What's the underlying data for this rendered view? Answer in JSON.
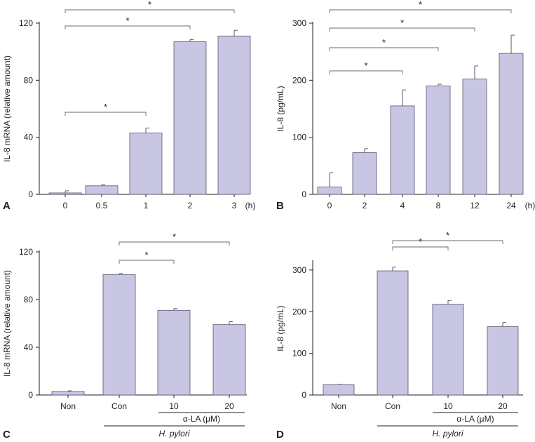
{
  "chart_data": [
    {
      "panel": "A",
      "type": "bar",
      "ylabel": "IL-8 mRNA (relative amount)",
      "unit_label": "(h)",
      "categories": [
        "0",
        "0.5",
        "1",
        "2",
        "3"
      ],
      "values": [
        1,
        6,
        43,
        107,
        111
      ],
      "errors": [
        1.5,
        0.8,
        3.5,
        1.5,
        4
      ],
      "yticks": [
        "0",
        "40",
        "80",
        "120"
      ],
      "ylim": [
        0,
        120
      ],
      "significance": [
        {
          "from": 0,
          "to": 2,
          "label": "*"
        },
        {
          "from": 0,
          "to": 3,
          "label": "*"
        },
        {
          "from": 0,
          "to": 4,
          "label": "*"
        }
      ],
      "group_label": null
    },
    {
      "panel": "B",
      "type": "bar",
      "ylabel": "IL-8 (pg/mL)",
      "unit_label": "(h)",
      "categories": [
        "0",
        "2",
        "4",
        "8",
        "12",
        "24"
      ],
      "values": [
        13,
        73,
        155,
        190,
        202,
        247
      ],
      "errors": [
        25,
        7,
        28,
        3,
        23,
        32
      ],
      "yticks": [
        "0",
        "100",
        "200",
        "300"
      ],
      "ylim": [
        0,
        300
      ],
      "significance": [
        {
          "from": 0,
          "to": 2,
          "label": "*"
        },
        {
          "from": 0,
          "to": 3,
          "label": "*"
        },
        {
          "from": 0,
          "to": 4,
          "label": "*"
        },
        {
          "from": 0,
          "to": 5,
          "label": "*"
        }
      ],
      "group_label": null
    },
    {
      "panel": "C",
      "type": "bar",
      "ylabel": "IL-8 mRNA (relative amount)",
      "unit_label": "",
      "categories": [
        "Non",
        "Con",
        "10",
        "20"
      ],
      "values": [
        3,
        101,
        71,
        59
      ],
      "errors": [
        0.5,
        0.8,
        1.5,
        2.5
      ],
      "yticks": [
        "0",
        "40",
        "80",
        "120"
      ],
      "ylim": [
        0,
        120
      ],
      "significance": [
        {
          "from": 1,
          "to": 2,
          "label": "*"
        },
        {
          "from": 1,
          "to": 3,
          "label": "*"
        }
      ],
      "group_label": {
        "text": "α-LA (μM)",
        "from": 2,
        "to": 3
      },
      "outer_label": {
        "text": "H. pylori",
        "from": 1,
        "to": 3
      }
    },
    {
      "panel": "D",
      "type": "bar",
      "ylabel": "IL-8 (pg/mL)",
      "unit_label": "",
      "categories": [
        "Non",
        "Con",
        "10",
        "20"
      ],
      "values": [
        25,
        298,
        218,
        164
      ],
      "errors": [
        0.5,
        9,
        9,
        10
      ],
      "yticks": [
        "0",
        "100",
        "200",
        "300"
      ],
      "ylim": [
        0,
        320
      ],
      "significance": [
        {
          "from": 1,
          "to": 2,
          "label": "*"
        },
        {
          "from": 1,
          "to": 3,
          "label": "*"
        }
      ],
      "group_label": {
        "text": "α-LA (μM)",
        "from": 2,
        "to": 3
      },
      "outer_label": {
        "text": "H. pylori",
        "from": 1,
        "to": 3
      }
    }
  ],
  "colors": {
    "bar_fill": "#c8c6e2",
    "bar_stroke": "#55566e",
    "axis": "#231f20"
  }
}
